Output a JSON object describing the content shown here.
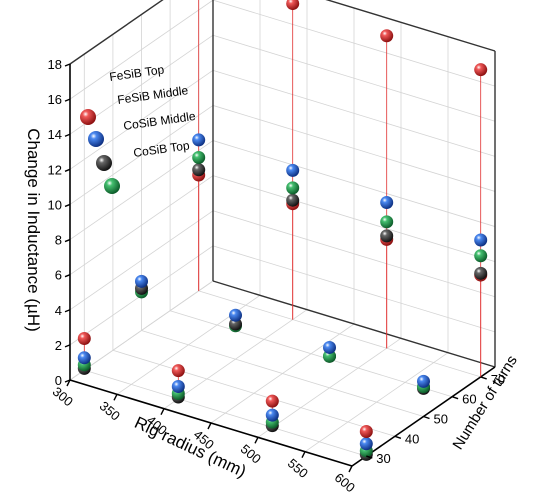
{
  "chart_data": {
    "type": "scatter",
    "subtype": "3d-scatter-with-drop-lines",
    "x_axis": {
      "label": "Rig radius (mm)",
      "range": [
        300,
        600
      ],
      "ticks": [
        300,
        350,
        400,
        450,
        500,
        550,
        600
      ]
    },
    "y_axis": {
      "label": "Number of turns",
      "range": [
        25,
        75
      ],
      "ticks": [
        30,
        40,
        50,
        60,
        70
      ]
    },
    "z_axis": {
      "label": "Change in Inductance (µH)",
      "range": [
        0,
        18
      ],
      "ticks": [
        0,
        2,
        4,
        6,
        8,
        10,
        12,
        14,
        16,
        18
      ]
    },
    "grid": true,
    "legend_position": "top-left",
    "series": [
      {
        "name": "FeSiB Top",
        "color": "#d42020",
        "drop_lines": true,
        "points": [
          {
            "x": 300,
            "y": 30,
            "z": 1.8
          },
          {
            "x": 400,
            "y": 30,
            "z": 1.6
          },
          {
            "x": 500,
            "y": 30,
            "z": 1.5
          },
          {
            "x": 600,
            "y": 30,
            "z": 1.4
          },
          {
            "x": 300,
            "y": 70,
            "z": 6.6
          },
          {
            "x": 400,
            "y": 70,
            "z": 6.6
          },
          {
            "x": 500,
            "y": 70,
            "z": 6.2
          },
          {
            "x": 600,
            "y": 70,
            "z": 5.8
          },
          {
            "x": 300,
            "y": 70,
            "z": 18.0
          },
          {
            "x": 400,
            "y": 70,
            "z": 18.0
          },
          {
            "x": 500,
            "y": 70,
            "z": 17.8
          },
          {
            "x": 600,
            "y": 70,
            "z": 17.5
          }
        ]
      },
      {
        "name": "FeSiB Middle",
        "color": "#1f5fd0",
        "points": [
          {
            "x": 300,
            "y": 30,
            "z": 0.7
          },
          {
            "x": 400,
            "y": 30,
            "z": 0.7
          },
          {
            "x": 500,
            "y": 30,
            "z": 0.7
          },
          {
            "x": 600,
            "y": 30,
            "z": 0.7
          },
          {
            "x": 300,
            "y": 50,
            "z": 2.8
          },
          {
            "x": 400,
            "y": 50,
            "z": 2.5
          },
          {
            "x": 500,
            "y": 50,
            "z": 2.3
          },
          {
            "x": 600,
            "y": 50,
            "z": 2.0
          },
          {
            "x": 300,
            "y": 70,
            "z": 8.6
          },
          {
            "x": 400,
            "y": 70,
            "z": 8.5
          },
          {
            "x": 500,
            "y": 70,
            "z": 8.3
          },
          {
            "x": 600,
            "y": 70,
            "z": 7.8
          }
        ]
      },
      {
        "name": "CoSiB Middle",
        "color": "#383838",
        "points": [
          {
            "x": 300,
            "y": 30,
            "z": 0.1
          },
          {
            "x": 400,
            "y": 30,
            "z": 0.1
          },
          {
            "x": 500,
            "y": 30,
            "z": 0.1
          },
          {
            "x": 600,
            "y": 30,
            "z": 0.1
          },
          {
            "x": 300,
            "y": 50,
            "z": 2.4
          },
          {
            "x": 400,
            "y": 50,
            "z": 2.0
          },
          {
            "x": 500,
            "y": 50,
            "z": 1.8
          },
          {
            "x": 600,
            "y": 50,
            "z": 1.6
          },
          {
            "x": 300,
            "y": 70,
            "z": 6.9
          },
          {
            "x": 400,
            "y": 70,
            "z": 6.8
          },
          {
            "x": 500,
            "y": 70,
            "z": 6.4
          },
          {
            "x": 600,
            "y": 70,
            "z": 5.9
          }
        ]
      },
      {
        "name": "CoSiB Top",
        "color": "#1e9e4a",
        "points": [
          {
            "x": 300,
            "y": 30,
            "z": 0.3
          },
          {
            "x": 400,
            "y": 30,
            "z": 0.3
          },
          {
            "x": 500,
            "y": 30,
            "z": 0.3
          },
          {
            "x": 600,
            "y": 30,
            "z": 0.3
          },
          {
            "x": 300,
            "y": 50,
            "z": 2.2
          },
          {
            "x": 400,
            "y": 50,
            "z": 1.9
          },
          {
            "x": 500,
            "y": 50,
            "z": 1.8
          },
          {
            "x": 600,
            "y": 50,
            "z": 1.7
          },
          {
            "x": 300,
            "y": 70,
            "z": 7.6
          },
          {
            "x": 400,
            "y": 70,
            "z": 7.5
          },
          {
            "x": 500,
            "y": 70,
            "z": 7.2
          },
          {
            "x": 600,
            "y": 70,
            "z": 6.9
          }
        ]
      }
    ]
  }
}
